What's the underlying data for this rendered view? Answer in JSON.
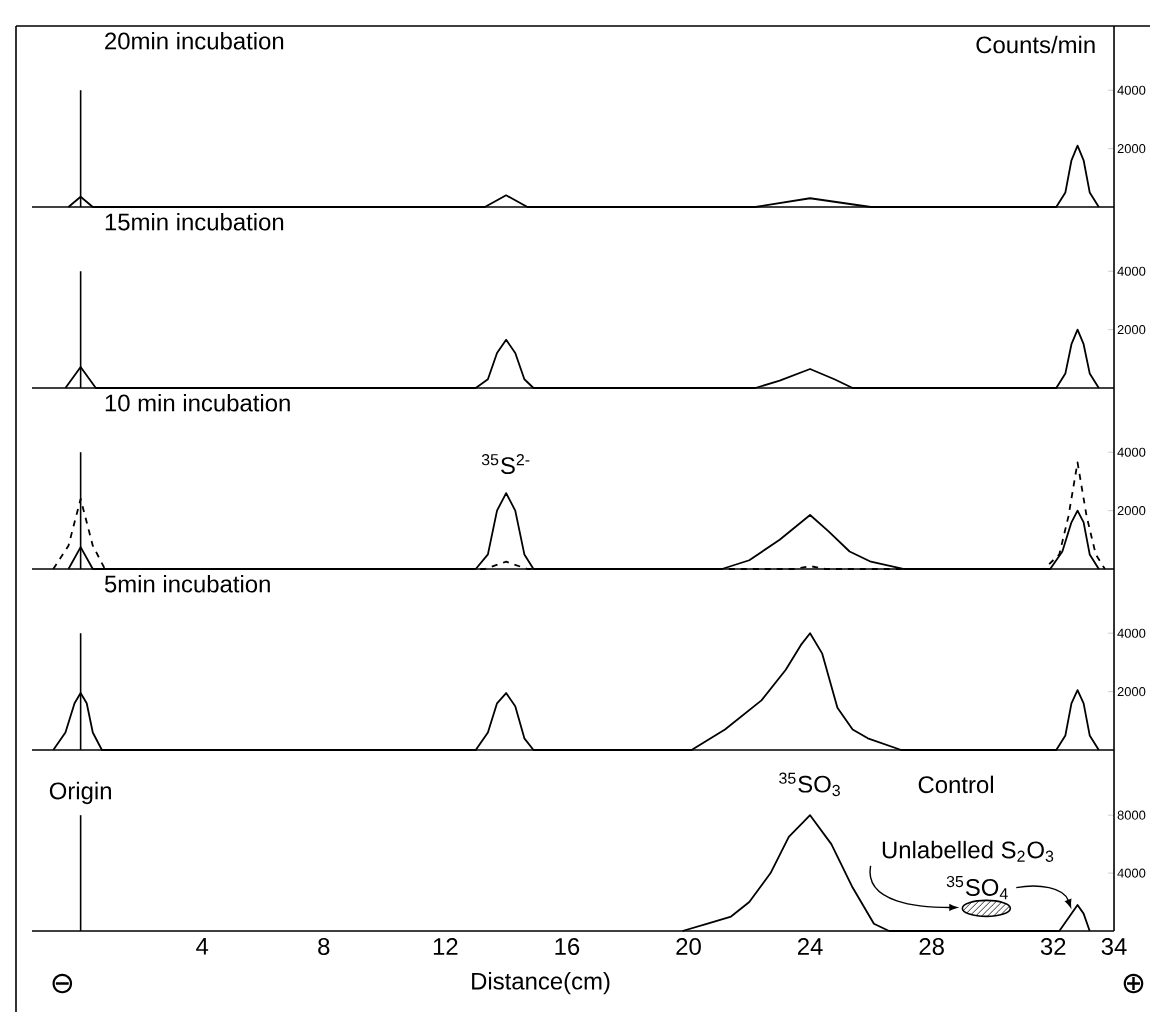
{
  "chart_data": [
    {
      "type": "line",
      "title": "20min incubation",
      "ylabel": "Counts/min",
      "xlim": [
        -1.6,
        34
      ],
      "ylim": [
        0,
        6200
      ],
      "yticks": [
        2000,
        4000
      ],
      "tick_labels": "y",
      "ref_lines": [
        {
          "axis": "x",
          "value": 0
        }
      ],
      "series": [
        {
          "color": "#000000",
          "x": [
            -0.4,
            0,
            0.4,
            13.3,
            14,
            14.7,
            22.2,
            24,
            26,
            32.1,
            32.4,
            32.6,
            32.8,
            33.0,
            33.2,
            33.5
          ],
          "values": [
            0,
            350,
            0,
            0,
            400,
            0,
            0,
            300,
            0,
            0,
            500,
            1600,
            2100,
            1600,
            500,
            0
          ]
        }
      ]
    },
    {
      "type": "line",
      "title": "15min incubation",
      "xlim": [
        -1.6,
        34
      ],
      "ylim": [
        0,
        6200
      ],
      "yticks": [
        2000,
        4000
      ],
      "tick_labels": "y",
      "ref_lines": [
        {
          "axis": "x",
          "value": 0
        }
      ],
      "series": [
        {
          "color": "#000000",
          "x": [
            -0.5,
            0,
            0.5,
            13.0,
            13.4,
            13.7,
            14,
            14.3,
            14.6,
            14.9,
            22.2,
            23,
            24,
            24.8,
            25.4,
            32.1,
            32.4,
            32.6,
            32.8,
            33.0,
            33.2,
            33.5
          ],
          "values": [
            0,
            720,
            0,
            0,
            300,
            1200,
            1650,
            1200,
            300,
            0,
            0,
            250,
            650,
            300,
            0,
            0,
            500,
            1500,
            2000,
            1500,
            500,
            0
          ]
        }
      ]
    },
    {
      "type": "line",
      "title": "10 min incubation",
      "xlim": [
        -1.6,
        34
      ],
      "ylim": [
        0,
        6200
      ],
      "yticks": [
        2000,
        4000
      ],
      "tick_labels": "y",
      "annotations": [
        {
          "text": "$^{35}$S$^{2-}$",
          "x": 14,
          "y": 2600
        }
      ],
      "ref_lines": [
        {
          "axis": "x",
          "value": 0
        }
      ],
      "series": [
        {
          "color": "#000000",
          "x": [
            -0.4,
            0,
            0.4,
            13.0,
            13.4,
            13.7,
            14,
            14.3,
            14.6,
            14.9,
            21.1,
            22,
            23,
            24,
            24.6,
            25.3,
            26,
            27.1,
            31.9,
            32.3,
            32.6,
            32.8,
            33.0,
            33.2,
            33.5
          ],
          "values": [
            0,
            750,
            0,
            0,
            500,
            2000,
            2600,
            2000,
            500,
            0,
            0,
            300,
            1000,
            1850,
            1300,
            600,
            250,
            0,
            0,
            600,
            1600,
            2000,
            1600,
            500,
            0
          ]
        },
        {
          "color": "#000000",
          "line_style": "dashed",
          "x": [
            -0.9,
            -0.4,
            -0.2,
            0,
            0.2,
            0.4,
            0.8,
            13.3,
            14,
            14.7,
            23.5,
            24,
            24.5,
            31.7,
            32.2,
            32.5,
            32.8,
            33.1,
            33.4,
            33.7
          ],
          "values": [
            0,
            800,
            1600,
            2400,
            1600,
            800,
            0,
            0,
            250,
            0,
            0,
            100,
            0,
            0,
            500,
            1800,
            3650,
            1800,
            500,
            0
          ]
        }
      ]
    },
    {
      "type": "line",
      "title": "5min incubation",
      "xlim": [
        -1.6,
        34
      ],
      "ylim": [
        0,
        6200
      ],
      "yticks": [
        2000,
        4000
      ],
      "tick_labels": "y",
      "ref_lines": [
        {
          "axis": "x",
          "value": 0
        }
      ],
      "series": [
        {
          "color": "#000000",
          "x": [
            -0.9,
            -0.5,
            -0.2,
            0,
            0.2,
            0.4,
            0.7,
            13.0,
            13.4,
            13.7,
            14,
            14.3,
            14.6,
            14.9,
            20.1,
            21.2,
            22.4,
            23.2,
            23.7,
            24,
            24.4,
            24.9,
            25.4,
            25.9,
            27,
            32.1,
            32.4,
            32.6,
            32.8,
            33.0,
            33.2,
            33.5
          ],
          "values": [
            0,
            600,
            1600,
            1950,
            1600,
            600,
            0,
            0,
            600,
            1600,
            1950,
            1500,
            400,
            0,
            0,
            700,
            1700,
            2750,
            3600,
            4000,
            3300,
            1450,
            700,
            400,
            0,
            0,
            500,
            1600,
            2050,
            1600,
            500,
            0
          ]
        }
      ]
    },
    {
      "type": "line",
      "xlabel": "Distance(cm)",
      "xlim": [
        -1.6,
        34
      ],
      "ylim": [
        0,
        12500
      ],
      "yticks": [
        4000,
        8000
      ],
      "xticks": [
        4,
        8,
        12,
        16,
        20,
        24,
        28,
        32,
        34
      ],
      "annotations": [
        {
          "text": "$^{35}$SO$_{3}$",
          "x": 24,
          "y": 8000
        },
        "Control",
        "Unlabelled S$_{2}$O$_{3}$",
        {
          "text": "$^{35}$SO$_{4}$",
          "x": 32.6,
          "y": 1500
        },
        "⊖",
        "⊕"
      ],
      "ref_lines": [
        {
          "axis": "x",
          "value": 0,
          "label": "Origin"
        }
      ],
      "series": [
        {
          "color": "#000000",
          "x": [
            19.8,
            20.6,
            21.4,
            22,
            22.7,
            23.3,
            24,
            24.7,
            25.4,
            26.1,
            26.6,
            32.2,
            32.5,
            32.8,
            33.0,
            33.2
          ],
          "values": [
            0,
            500,
            1000,
            2000,
            4000,
            6500,
            8000,
            6000,
            3000,
            500,
            0,
            0,
            900,
            1800,
            1200,
            0
          ]
        }
      ]
    }
  ]
}
